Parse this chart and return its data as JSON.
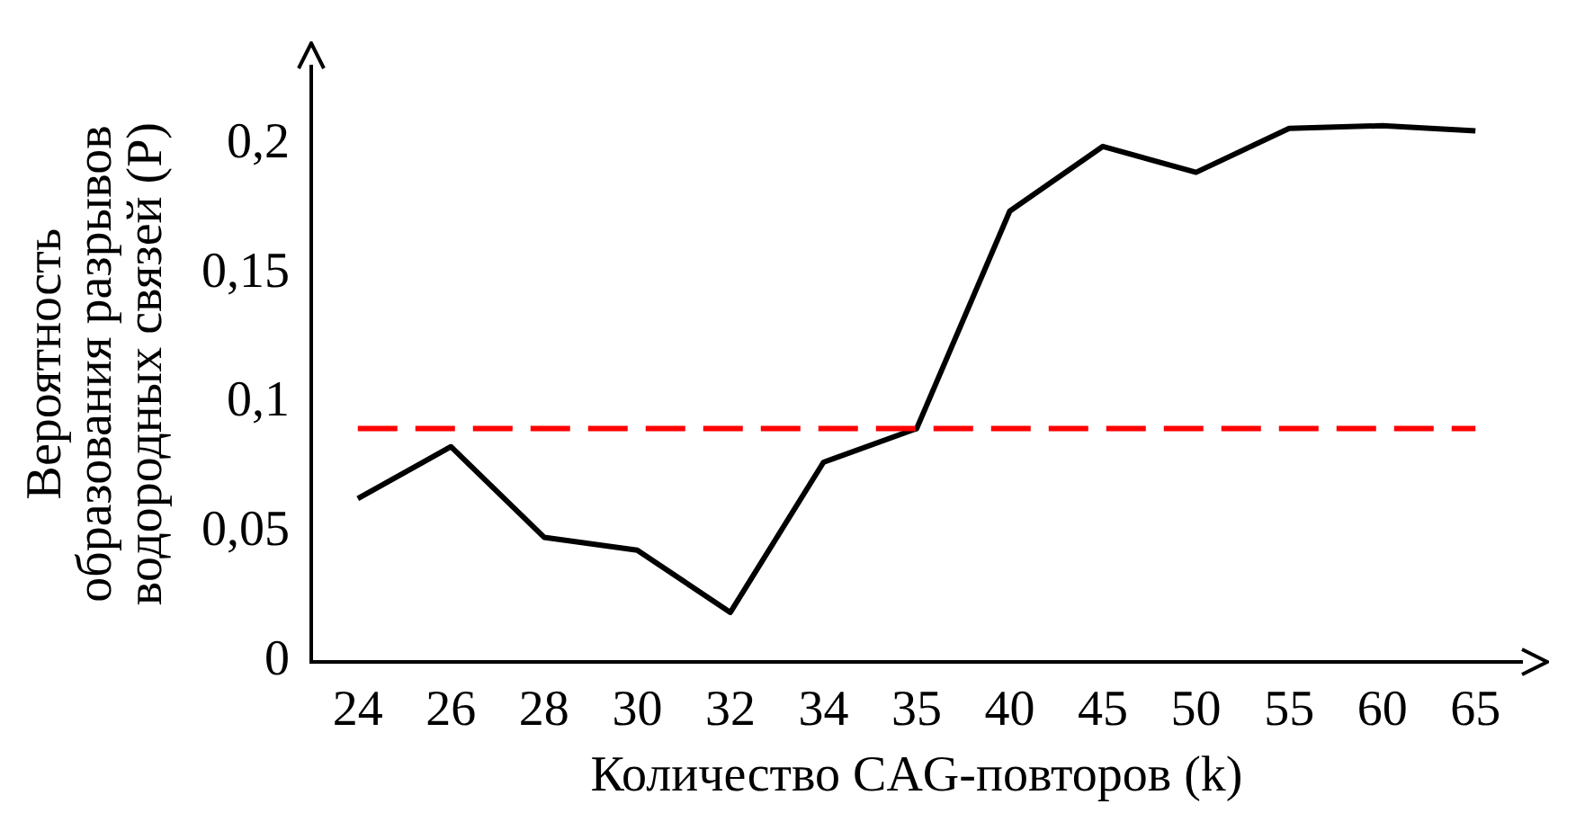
{
  "chart_data": {
    "type": "line",
    "xlabel": "Количество CAG-повторов (k)",
    "ylabel": "Вероятность\nобразования разрывов\nводородных связей (Р)",
    "categories": [
      "24",
      "26",
      "28",
      "30",
      "32",
      "34",
      "35",
      "40",
      "45",
      "50",
      "55",
      "60",
      "65"
    ],
    "series": [
      {
        "color": "#000000",
        "values": [
          0.063,
          0.083,
          0.048,
          0.043,
          0.019,
          0.077,
          0.09,
          0.174,
          0.199,
          0.189,
          0.206,
          0.207,
          0.205
        ]
      }
    ],
    "ylim": [
      0,
      0.23
    ],
    "yticks": [
      0,
      {
        "value": 0.05,
        "label": "0,05"
      },
      {
        "value": 0.1,
        "label": "0,1"
      },
      {
        "value": 0.15,
        "label": "0,15"
      },
      {
        "value": 0.2,
        "label": "0,2"
      }
    ],
    "ref_lines": [
      {
        "axis": "y",
        "value": 0.09,
        "color": "#ff0000",
        "line_style": "dashed"
      }
    ],
    "grid": false,
    "legend": false,
    "marker": "none",
    "line_style": "solid"
  }
}
